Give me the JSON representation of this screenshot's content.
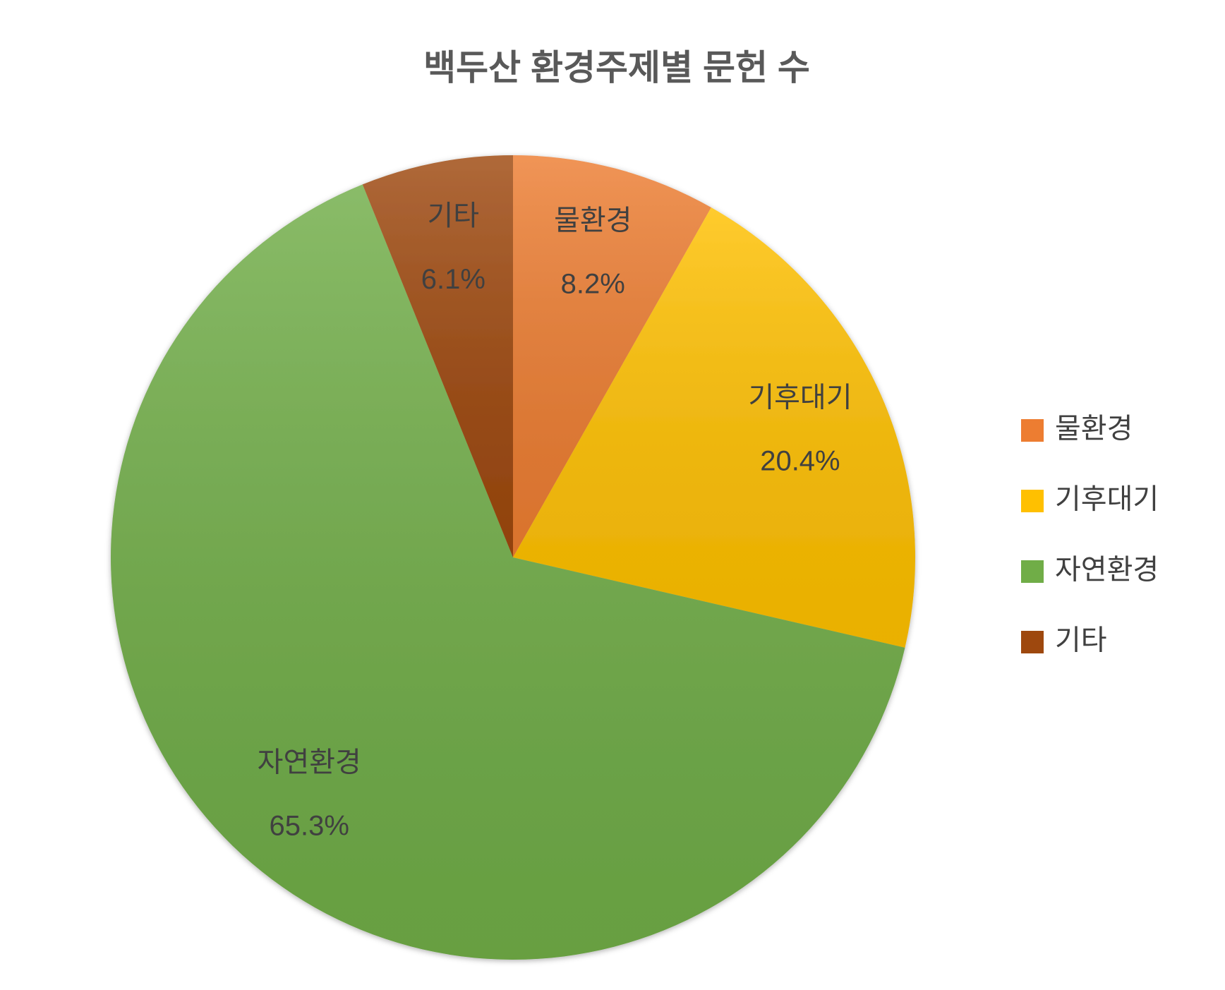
{
  "chart_data": {
    "type": "pie",
    "title": "백두산 환경주제별 문헌 수",
    "categories": [
      "물환경",
      "기후대기",
      "자연환경",
      "기타"
    ],
    "values": [
      8.2,
      20.4,
      65.3,
      6.1
    ],
    "value_labels": [
      "8.2%",
      "20.4%",
      "65.3%",
      "6.1%"
    ],
    "colors": [
      "#ED7D31",
      "#FFC000",
      "#70AD47",
      "#9E480E"
    ],
    "legend": "right"
  }
}
